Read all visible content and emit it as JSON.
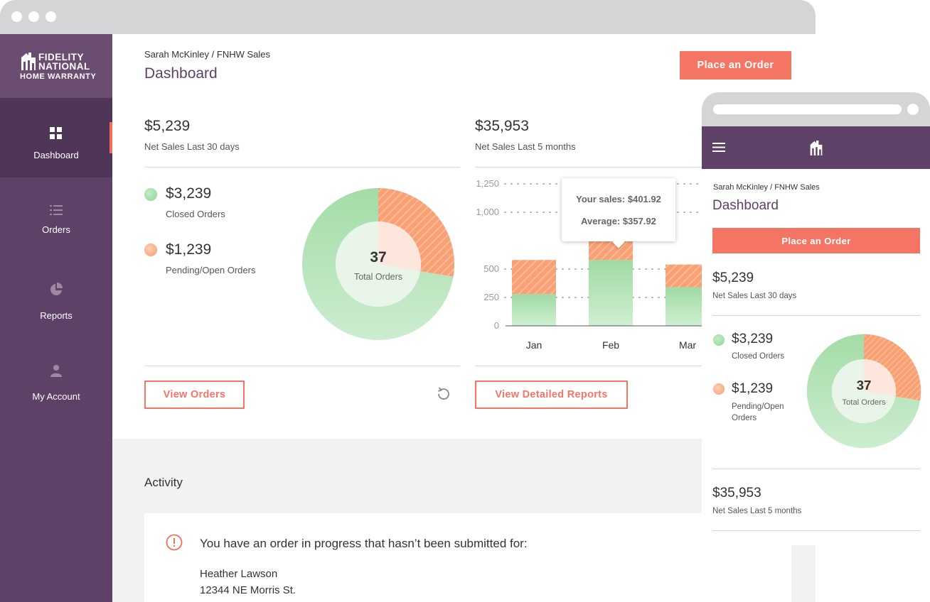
{
  "brand": {
    "line1": "FIDELITY",
    "line2": "NATIONAL",
    "line3": "HOME WARRANTY",
    "colors": {
      "purple": "#5e4166",
      "coral": "#f57565",
      "green": "#9fdaa4",
      "orange": "#f9a57f"
    }
  },
  "sidebar": {
    "items": [
      {
        "label": "Dashboard",
        "icon": "grid-icon",
        "active": true
      },
      {
        "label": "Orders",
        "icon": "list-icon",
        "active": false
      },
      {
        "label": "Reports",
        "icon": "pie-chart-icon",
        "active": false
      },
      {
        "label": "My Account",
        "icon": "user-icon",
        "active": false
      }
    ]
  },
  "header": {
    "breadcrumb": "Sarah McKinley / FNHW Sales",
    "title": "Dashboard",
    "place_order": "Place an Order"
  },
  "summary_30": {
    "value": "$5,239",
    "label": "Net Sales Last 30 days"
  },
  "summary_5m": {
    "value": "$35,953",
    "label": "Net Sales Last 5 months"
  },
  "legend": {
    "closed_value": "$3,239",
    "closed_label": "Closed Orders",
    "pending_value": "$1,239",
    "pending_label": "Pending/Open Orders"
  },
  "donut": {
    "center_value": "37",
    "center_label": "Total Orders"
  },
  "tooltip": {
    "sales": "Your sales: $401.92",
    "average": "Average: $357.92"
  },
  "buttons": {
    "view_orders": "View Orders",
    "view_reports": "View Detailed Reports"
  },
  "activity": {
    "title": "Activity",
    "alert": "You have an order in progress that hasn’t been submitted for:",
    "name": "Heather Lawson",
    "address": "12344 NE Morris St."
  },
  "mobile": {
    "breadcrumb": "Sarah McKinley / FNHW Sales",
    "title": "Dashboard",
    "place_order": "Place an Order",
    "summary_30_value": "$5,239",
    "summary_30_label": "Net Sales Last 30 days",
    "closed_value": "$3,239",
    "closed_label": "Closed Orders",
    "pending_value": "$1,239",
    "pending_label_1": "Pending/Open",
    "pending_label_2": "Orders",
    "donut_value": "37",
    "donut_label": "Total Orders",
    "summary_5m_value": "$35,953",
    "summary_5m_label": "Net Sales Last 5 months"
  },
  "chart_data": [
    {
      "type": "pie",
      "title": "",
      "labels": [
        "Closed Orders",
        "Pending/Open Orders"
      ],
      "values": [
        3239,
        1239
      ],
      "center_text": "37 Total Orders"
    },
    {
      "type": "bar",
      "title": "",
      "categories": [
        "Jan",
        "Feb",
        "Mar"
      ],
      "series": [
        {
          "name": "Your sales",
          "values": [
            280,
            580,
            340
          ]
        },
        {
          "name": "Average",
          "values": [
            300,
            670,
            200
          ]
        }
      ],
      "y_ticks": [
        "0",
        "250",
        "500",
        "1,000",
        "1,250"
      ],
      "y_tick_values": [
        0,
        250,
        500,
        1000,
        1250
      ],
      "stacked": true,
      "grid": true
    }
  ]
}
